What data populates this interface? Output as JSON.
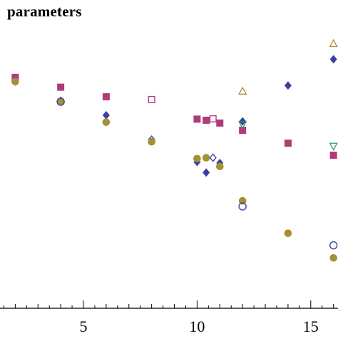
{
  "chart_data": {
    "type": "scatter",
    "title": "parameters",
    "xlabel": "",
    "ylabel": "",
    "xlim": [
      0.5,
      16.4
    ],
    "ylim": [
      0,
      1
    ],
    "xticks": [
      5,
      10,
      15
    ],
    "xtick_labels": [
      "5",
      "10",
      "15"
    ],
    "grid": false,
    "legend": "none",
    "series": [
      {
        "marker": "square-filled",
        "color": "#b03a7a",
        "points": [
          [
            2,
            0.825
          ],
          [
            4,
            0.79
          ],
          [
            6,
            0.756
          ],
          [
            10,
            0.676
          ],
          [
            10.4,
            0.672
          ],
          [
            11,
            0.662
          ],
          [
            12,
            0.636
          ],
          [
            14,
            0.59
          ],
          [
            16,
            0.547
          ]
        ]
      },
      {
        "marker": "square-open",
        "color": "#b03a7a",
        "points": [
          [
            8,
            0.746
          ],
          [
            10.7,
            0.677
          ]
        ]
      },
      {
        "marker": "diamond-filled",
        "color": "#3b3ea3",
        "points": [
          [
            2,
            0.81
          ],
          [
            4,
            0.742
          ],
          [
            6,
            0.69
          ],
          [
            10,
            0.523
          ],
          [
            10.4,
            0.485
          ],
          [
            11,
            0.519
          ],
          [
            12,
            0.668
          ],
          [
            14,
            0.796
          ],
          [
            16,
            0.89
          ]
        ]
      },
      {
        "marker": "diamond-open",
        "color": "#3b3ea3",
        "points": [
          [
            8,
            0.603
          ],
          [
            10.7,
            0.538
          ]
        ]
      },
      {
        "marker": "circle-filled",
        "color": "#a59036",
        "points": [
          [
            2,
            0.81
          ],
          [
            4,
            0.74
          ],
          [
            6,
            0.665
          ],
          [
            8,
            0.595
          ],
          [
            10,
            0.535
          ],
          [
            10.4,
            0.538
          ],
          [
            11,
            0.507
          ],
          [
            12,
            0.384
          ],
          [
            14,
            0.268
          ],
          [
            16,
            0.18
          ]
        ]
      },
      {
        "marker": "circle-open",
        "color": "#3b3ea3",
        "points": [
          [
            4,
            0.738
          ],
          [
            12,
            0.364
          ],
          [
            16,
            0.225
          ]
        ]
      },
      {
        "marker": "triangle-up-open",
        "color": "#a59036",
        "points": [
          [
            12,
            0.775
          ],
          [
            16,
            0.945
          ]
        ]
      },
      {
        "marker": "triangle-down-open",
        "color": "#2f9e5a",
        "points": [
          [
            12,
            0.657
          ],
          [
            16,
            0.58
          ]
        ]
      }
    ]
  }
}
